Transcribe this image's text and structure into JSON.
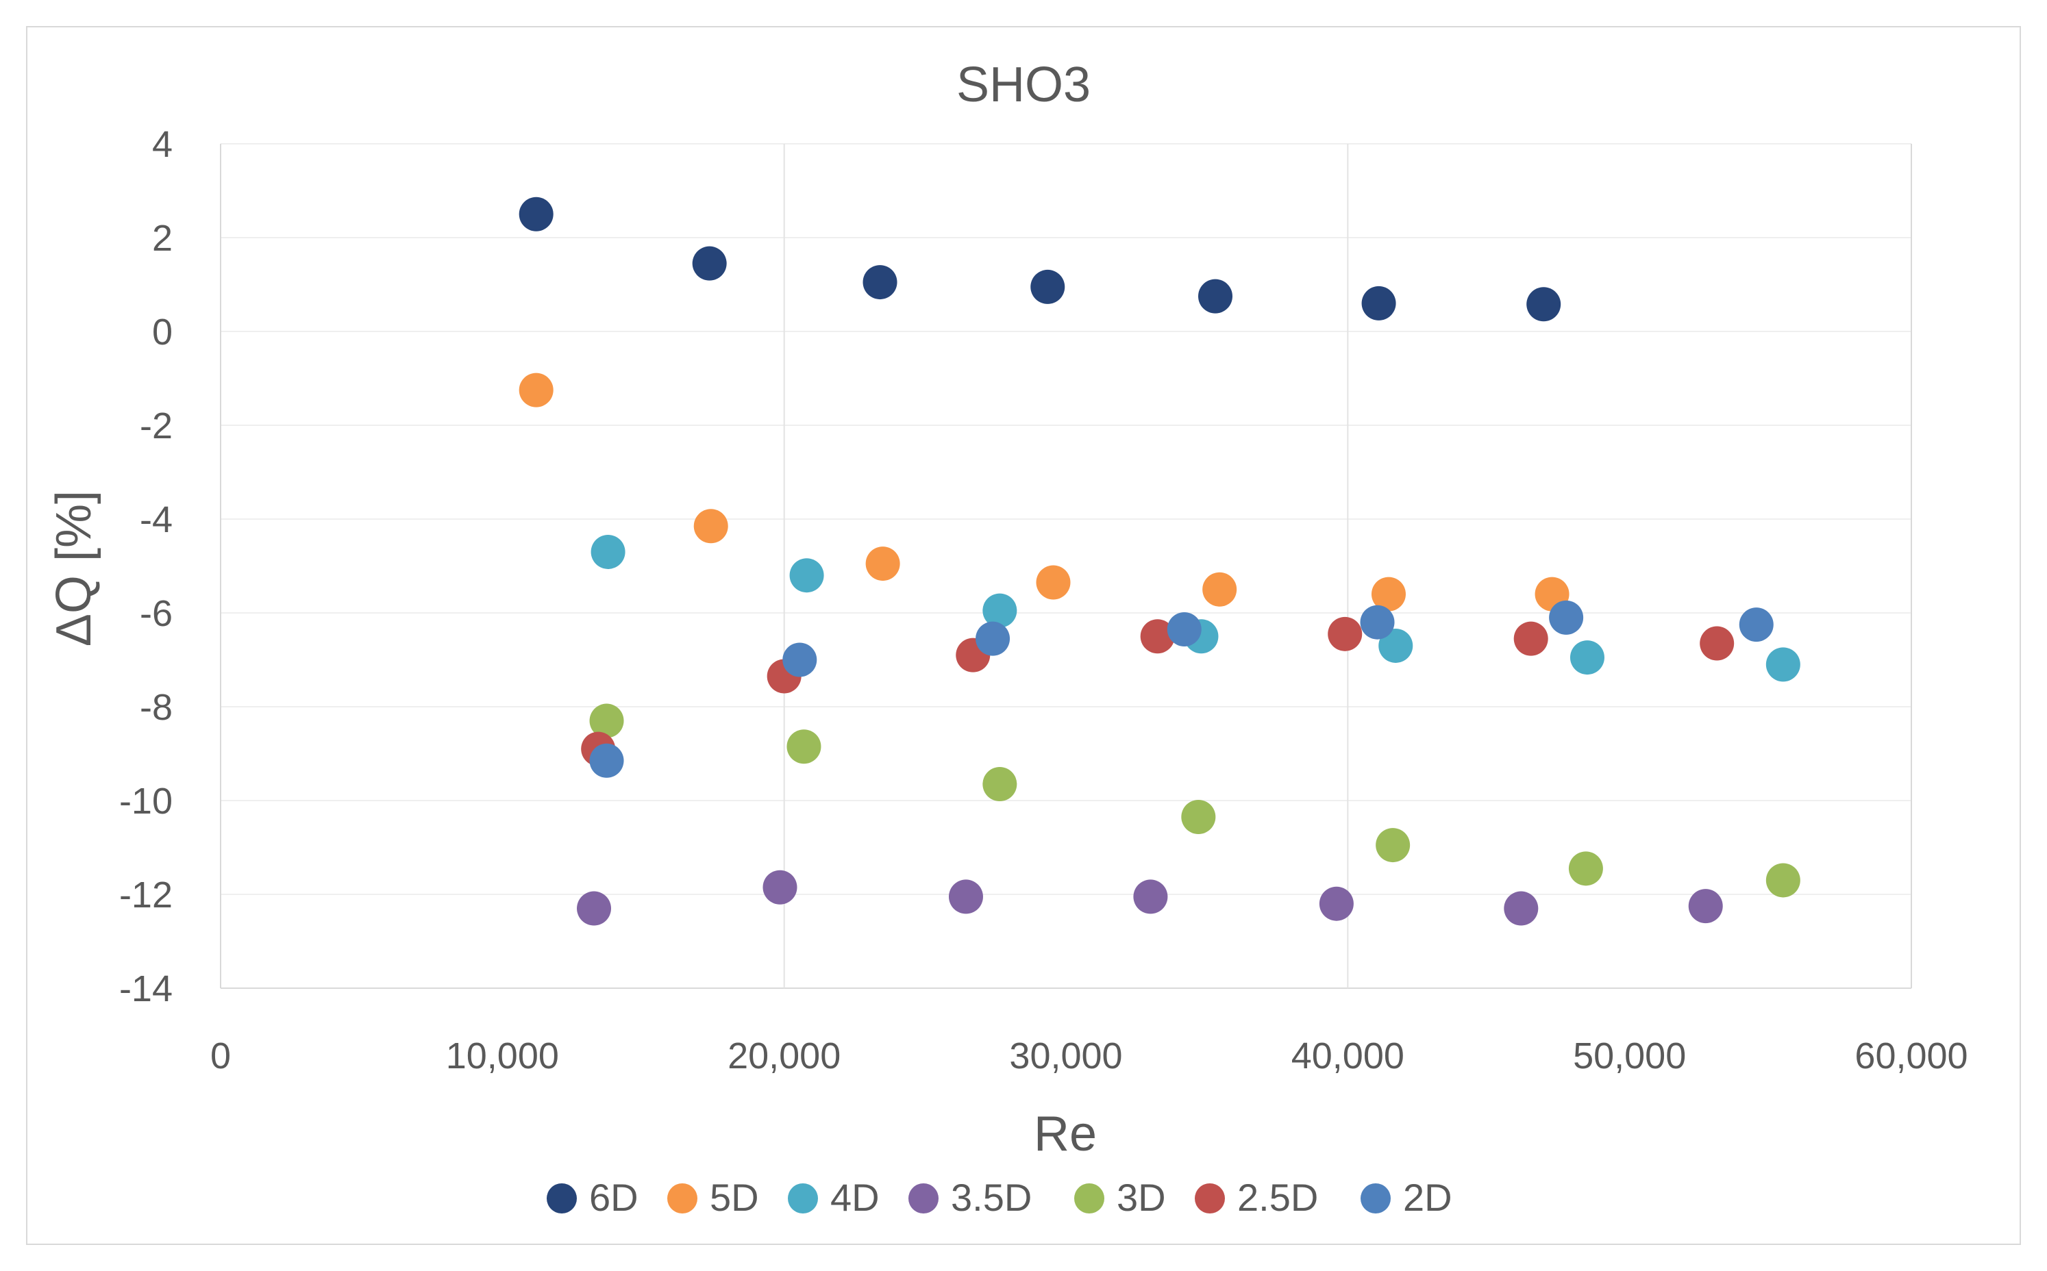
{
  "chart_data": {
    "type": "scatter",
    "title": "SHO3",
    "xlabel": "Re",
    "ylabel": "ΔQ [%]",
    "xlim": [
      0,
      60000
    ],
    "ylim": [
      -14,
      4
    ],
    "x_ticks": [
      0,
      10000,
      20000,
      30000,
      40000,
      50000,
      60000
    ],
    "x_tick_labels": [
      "0",
      "10,000",
      "20,000",
      "30,000",
      "40,000",
      "50,000",
      "60,000"
    ],
    "y_ticks": [
      4,
      2,
      0,
      -2,
      -4,
      -6,
      -8,
      -10,
      -12,
      -14
    ],
    "y_tick_labels": [
      "4",
      "2",
      "0",
      "-2",
      "-4",
      "-6",
      "-8",
      "-10",
      "-12",
      "-14"
    ],
    "grid": {
      "vertical_every": 20000,
      "horizontal_every": 2
    },
    "legend_position": "bottom",
    "series": [
      {
        "name": "6D",
        "color": "#264478",
        "points": [
          [
            11200,
            2.5
          ],
          [
            17350,
            1.45
          ],
          [
            23400,
            1.05
          ],
          [
            29350,
            0.95
          ],
          [
            35300,
            0.75
          ],
          [
            41100,
            0.6
          ],
          [
            46950,
            0.58
          ]
        ]
      },
      {
        "name": "5D",
        "color": "#F79646",
        "points": [
          [
            11200,
            -1.25
          ],
          [
            17400,
            -4.15
          ],
          [
            23500,
            -4.95
          ],
          [
            29550,
            -5.35
          ],
          [
            35450,
            -5.5
          ],
          [
            41450,
            -5.6
          ],
          [
            47250,
            -5.6
          ]
        ]
      },
      {
        "name": "4D",
        "color": "#4BACC6",
        "points": [
          [
            13750,
            -4.7
          ],
          [
            20800,
            -5.2
          ],
          [
            27650,
            -5.95
          ],
          [
            34800,
            -6.5
          ],
          [
            41700,
            -6.7
          ],
          [
            48500,
            -6.95
          ],
          [
            55450,
            -7.1
          ]
        ]
      },
      {
        "name": "3.5D",
        "color": "#8064A2",
        "points": [
          [
            13250,
            -12.3
          ],
          [
            19850,
            -11.85
          ],
          [
            26450,
            -12.05
          ],
          [
            33000,
            -12.05
          ],
          [
            39600,
            -12.2
          ],
          [
            46150,
            -12.3
          ],
          [
            52700,
            -12.25
          ]
        ]
      },
      {
        "name": "3D",
        "color": "#9BBB59",
        "points": [
          [
            13700,
            -8.3
          ],
          [
            20700,
            -8.85
          ],
          [
            27650,
            -9.65
          ],
          [
            34700,
            -10.35
          ],
          [
            41600,
            -10.95
          ],
          [
            48450,
            -11.45
          ],
          [
            55450,
            -11.7
          ]
        ]
      },
      {
        "name": "2.5D",
        "color": "#C0504D",
        "points": [
          [
            13400,
            -8.9
          ],
          [
            20000,
            -7.35
          ],
          [
            26700,
            -6.9
          ],
          [
            33250,
            -6.5
          ],
          [
            39900,
            -6.45
          ],
          [
            46500,
            -6.55
          ],
          [
            53100,
            -6.65
          ]
        ]
      },
      {
        "name": "2D",
        "color": "#4F81BD",
        "points": [
          [
            13700,
            -9.15
          ],
          [
            20550,
            -7.0
          ],
          [
            27400,
            -6.55
          ],
          [
            34200,
            -6.35
          ],
          [
            41050,
            -6.2
          ],
          [
            47750,
            -6.1
          ],
          [
            54500,
            -6.25
          ]
        ]
      }
    ]
  }
}
